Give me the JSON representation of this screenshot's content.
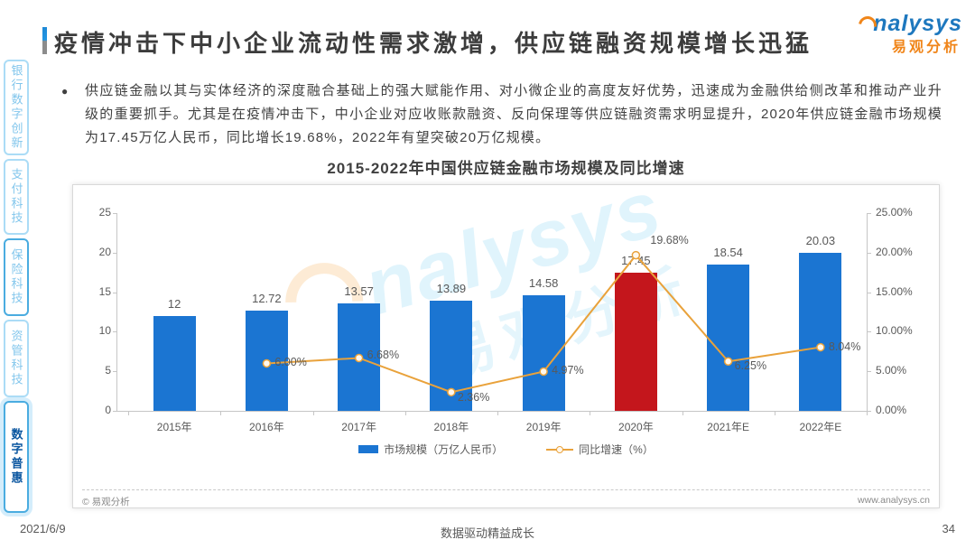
{
  "header": {
    "title": "疫情冲击下中小企业流动性需求激增，供应链融资规模增长迅猛"
  },
  "logo": {
    "text_en": "nalysys",
    "text_cn": "易观分析"
  },
  "sidebar": {
    "tabs": [
      {
        "label": "银行数字创新",
        "state": "normal"
      },
      {
        "label": "支付科技",
        "state": "normal"
      },
      {
        "label": "保险科技",
        "state": "highlighted"
      },
      {
        "label": "资管科技",
        "state": "normal"
      },
      {
        "label": "数字普惠",
        "state": "active"
      }
    ]
  },
  "body": {
    "bullet": "●",
    "text": "供应链金融以其与实体经济的深度融合基础上的强大赋能作用、对小微企业的高度友好优势，迅速成为金融供给侧改革和推动产业升级的重要抓手。尤其是在疫情冲击下，中小企业对应收账款融资、反向保理等供应链融资需求明显提升，2020年供应链金融市场规模为17.45万亿人民币，同比增长19.68%，2022年有望突破20万亿规模。"
  },
  "chart_data": {
    "type": "bar",
    "title": "2015-2022年中国供应链金融市场规模及同比增速",
    "categories": [
      "2015年",
      "2016年",
      "2017年",
      "2018年",
      "2019年",
      "2020年",
      "2021年E",
      "2022年E"
    ],
    "series": [
      {
        "name": "市场规模（万亿人民币）",
        "type": "bar",
        "values": [
          12,
          12.72,
          13.57,
          13.89,
          14.58,
          17.45,
          18.54,
          20.03
        ],
        "labels": [
          "12",
          "12.72",
          "13.57",
          "13.89",
          "14.58",
          "17.45",
          "18.54",
          "20.03"
        ]
      },
      {
        "name": "同比增速（%）",
        "type": "line",
        "values": [
          null,
          6.0,
          6.68,
          2.36,
          4.97,
          19.68,
          6.25,
          8.04
        ],
        "labels": [
          "",
          "6.00%",
          "6.68%",
          "2.36%",
          "4.97%",
          "19.68%",
          "6.25%",
          "8.04%"
        ]
      }
    ],
    "left_axis_ticks": [
      "0",
      "5",
      "10",
      "15",
      "20",
      "25"
    ],
    "right_axis_ticks": [
      "0.00%",
      "5.00%",
      "10.00%",
      "15.00%",
      "20.00%",
      "25.00%"
    ],
    "axis_max": 25,
    "highlight_index": 5,
    "colors": {
      "bar": "#1B75D2",
      "highlight": "#C4161C",
      "line": "#E9A23B"
    },
    "legend_position": "bottom",
    "grid": false
  },
  "panel": {
    "copyright": "© 易观分析",
    "website": "www.analysys.cn"
  },
  "watermark": {
    "text_en": "nalysys",
    "text_cn": "易观分析"
  },
  "footer": {
    "date": "2021/6/9",
    "slogan": "数据驱动精益成长",
    "page_number": "34"
  }
}
